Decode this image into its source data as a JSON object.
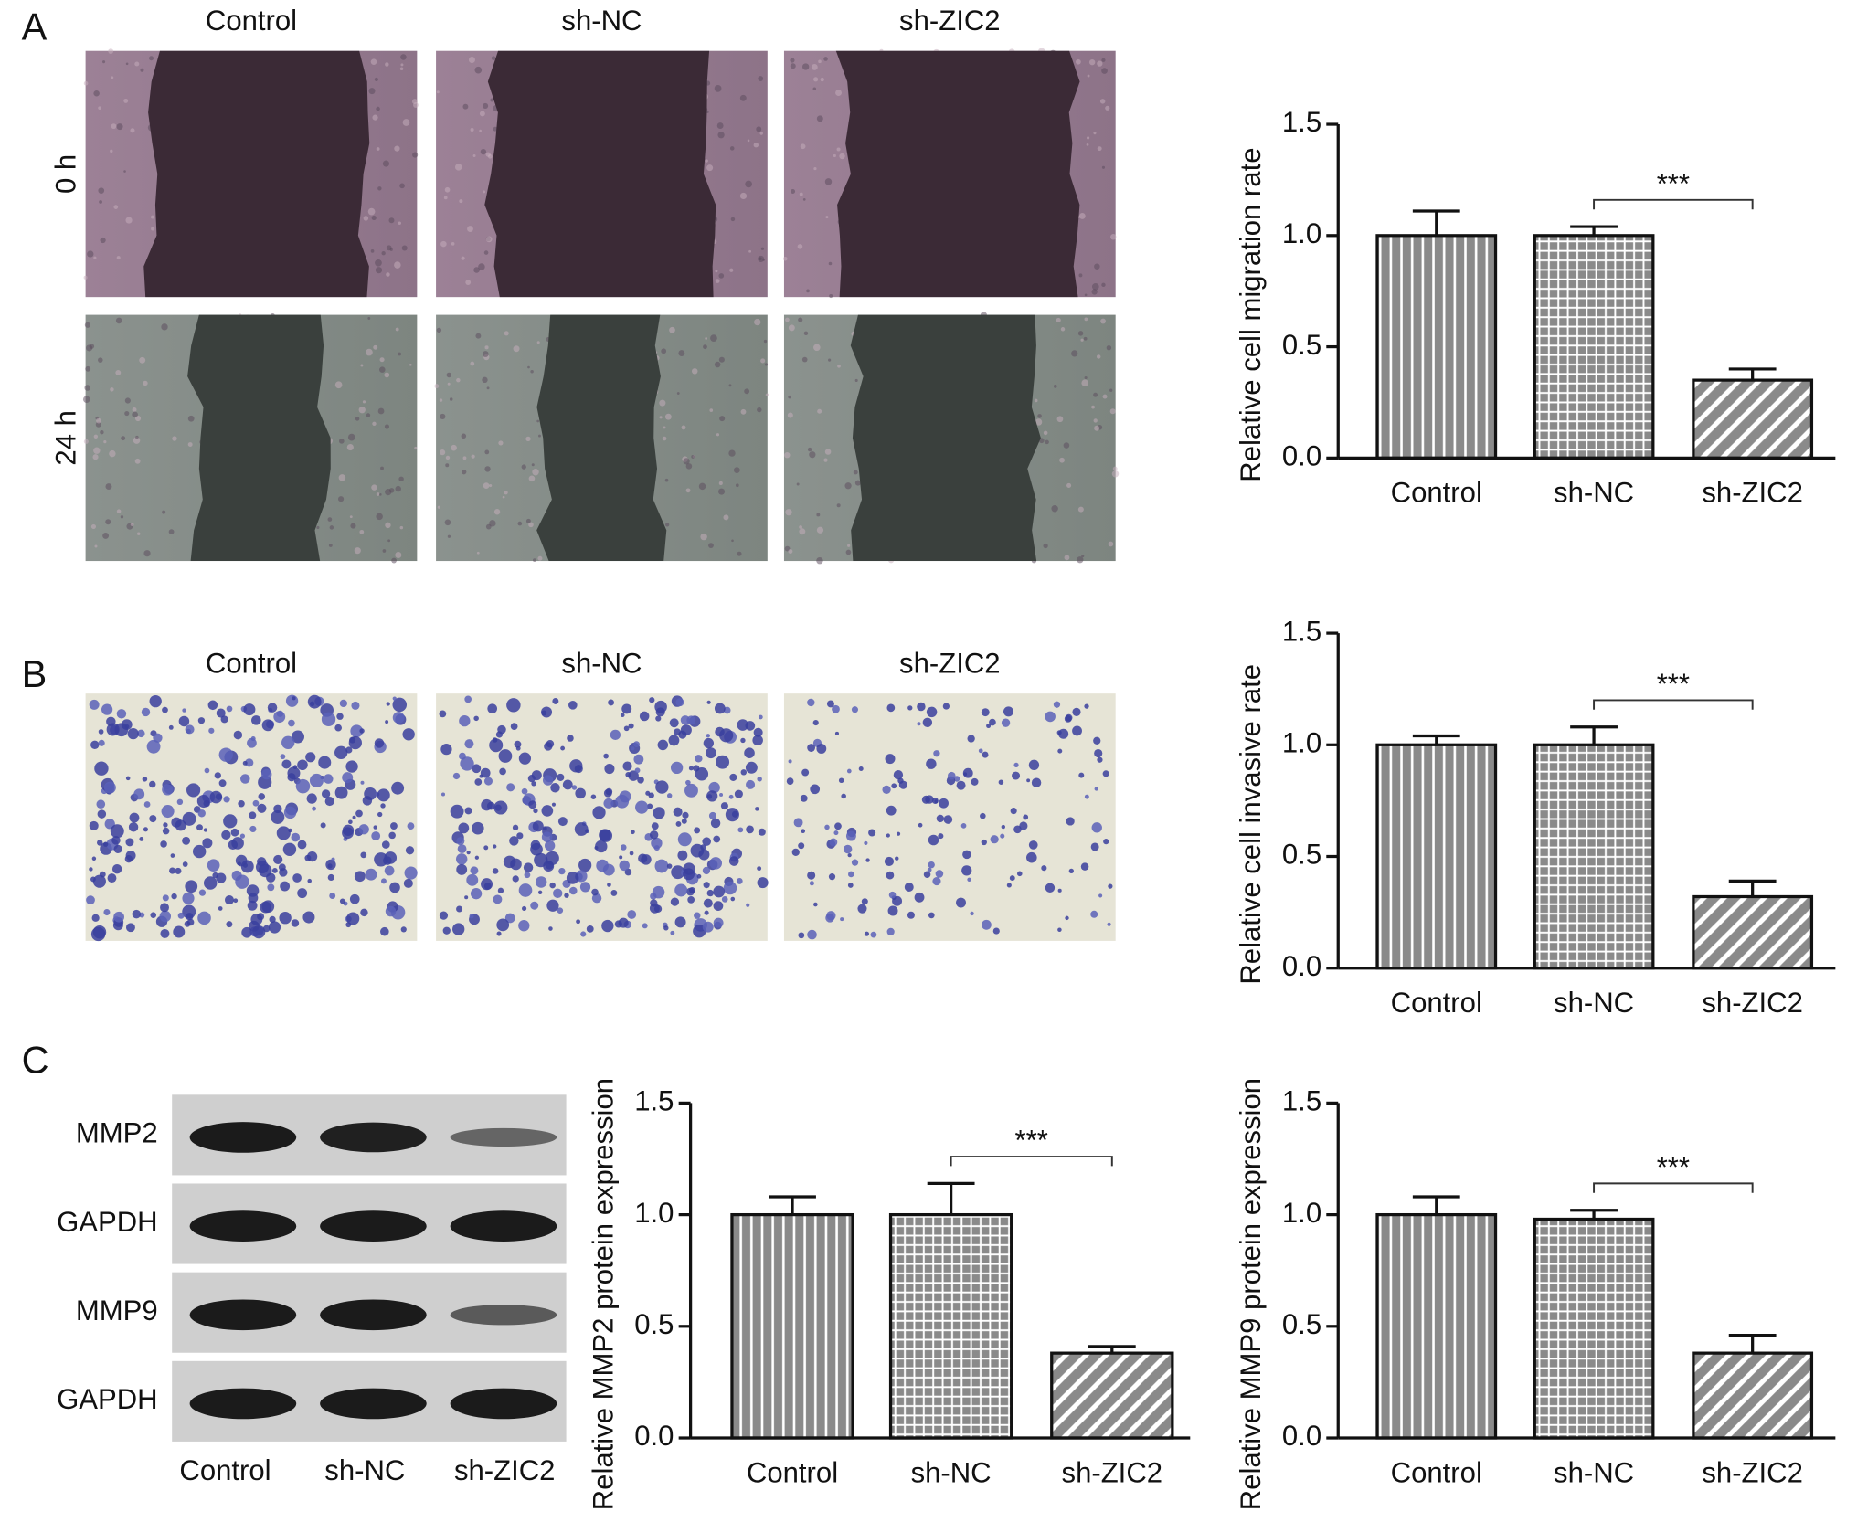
{
  "figure": {
    "panel_labels": [
      "A",
      "B",
      "C"
    ],
    "wound_columns": [
      "Control",
      "sh-NC",
      "sh-ZIC2"
    ],
    "wound_rows": [
      "0 h",
      "24 h"
    ],
    "invasion_columns": [
      "Control",
      "sh-NC",
      "sh-ZIC2"
    ],
    "blot_rows": [
      "MMP2",
      "GAPDH",
      "MMP9",
      "GAPDH"
    ],
    "blot_columns": [
      "Control",
      "sh-NC",
      "sh-ZIC2"
    ]
  },
  "chart_data": [
    {
      "type": "bar",
      "y_label": "Relative cell migration rate",
      "categories": [
        "Control",
        "sh-NC",
        "sh-ZIC2"
      ],
      "values": [
        1.0,
        1.0,
        0.35
      ],
      "errors": [
        0.11,
        0.04,
        0.05
      ],
      "patterns": [
        "vertical",
        "grid",
        "diagonal"
      ],
      "color": "#8a8a8a",
      "ylim": [
        0,
        1.5
      ],
      "yticks": [
        {
          "value": 0,
          "label": "0.0"
        },
        0.5,
        {
          "value": 1,
          "label": "1.0"
        },
        1.5
      ],
      "annotation": "***"
    },
    {
      "type": "bar",
      "y_label": "Relative cell invasive rate",
      "categories": [
        "Control",
        "sh-NC",
        "sh-ZIC2"
      ],
      "values": [
        1.0,
        1.0,
        0.32
      ],
      "errors": [
        0.04,
        0.08,
        0.07
      ],
      "patterns": [
        "vertical",
        "grid",
        "diagonal"
      ],
      "color": "#8a8a8a",
      "ylim": [
        0,
        1.5
      ],
      "yticks": [
        {
          "value": 0,
          "label": "0.0"
        },
        0.5,
        {
          "value": 1,
          "label": "1.0"
        },
        1.5
      ],
      "annotation": "***"
    },
    {
      "type": "bar",
      "y_label": "Relative MMP2 protein expression",
      "categories": [
        "Control",
        "sh-NC",
        "sh-ZIC2"
      ],
      "values": [
        1.0,
        1.0,
        0.38
      ],
      "errors": [
        0.08,
        0.14,
        0.03
      ],
      "patterns": [
        "vertical",
        "grid",
        "diagonal"
      ],
      "color": "#8a8a8a",
      "ylim": [
        0,
        1.5
      ],
      "yticks": [
        {
          "value": 0,
          "label": "0.0"
        },
        0.5,
        {
          "value": 1,
          "label": "1.0"
        },
        1.5
      ],
      "annotation": "***"
    },
    {
      "type": "bar",
      "y_label": "Relative MMP9 protein expression",
      "categories": [
        "Control",
        "sh-NC",
        "sh-ZIC2"
      ],
      "values": [
        1.0,
        0.98,
        0.38
      ],
      "errors": [
        0.08,
        0.04,
        0.08
      ],
      "patterns": [
        "vertical",
        "grid",
        "diagonal"
      ],
      "color": "#8a8a8a",
      "ylim": [
        0,
        1.5
      ],
      "yticks": [
        {
          "value": 0,
          "label": "0.0"
        },
        0.5,
        {
          "value": 1,
          "label": "1.0"
        },
        1.5
      ],
      "annotation": "***"
    }
  ]
}
